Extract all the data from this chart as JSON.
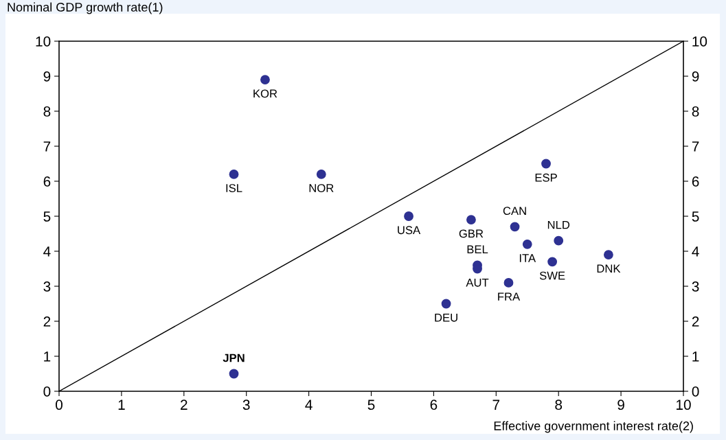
{
  "chart_data": {
    "type": "scatter",
    "xlabel": "Effective government interest rate(2)",
    "ylabel": "Nominal GDP growth rate(1)",
    "xlim": [
      0,
      10
    ],
    "xticks": [
      0,
      1,
      2,
      3,
      4,
      5,
      6,
      7,
      8,
      9,
      10
    ],
    "ylim": [
      0,
      10
    ],
    "yticks": [
      0,
      1,
      2,
      3,
      4,
      5,
      6,
      7,
      8,
      9,
      10
    ],
    "y2lim": [
      0,
      10
    ],
    "y2ticks": [
      0,
      1,
      2,
      3,
      4,
      5,
      6,
      7,
      8,
      9,
      10
    ],
    "grid": false,
    "legend": false,
    "series": [
      {
        "marker": "circle",
        "color": "#2e3192",
        "x": [
          3.3,
          2.8,
          4.2,
          7.8,
          5.6,
          6.6,
          7.3,
          8.0,
          7.5,
          8.8,
          6.7,
          6.7,
          7.9,
          7.2,
          6.2,
          2.8
        ],
        "values": [
          8.9,
          6.2,
          6.2,
          6.5,
          5.0,
          4.9,
          4.7,
          4.3,
          4.2,
          3.9,
          3.6,
          3.5,
          3.7,
          3.1,
          2.5,
          0.5
        ]
      },
      {
        "type": "line",
        "color": "#000000",
        "x": [
          0,
          10
        ],
        "values": [
          0,
          10
        ]
      }
    ],
    "annotations": [
      {
        "text": "KOR",
        "x": 3.3,
        "y": 8.9
      },
      {
        "text": "ISL",
        "x": 2.8,
        "y": 6.2
      },
      {
        "text": "NOR",
        "x": 4.2,
        "y": 6.2
      },
      {
        "text": "ESP",
        "x": 7.8,
        "y": 6.5
      },
      {
        "text": "USA",
        "x": 5.6,
        "y": 5.0
      },
      {
        "text": "GBR",
        "x": 6.6,
        "y": 4.9
      },
      {
        "text": "CAN",
        "x": 7.3,
        "y": 4.7
      },
      {
        "text": "NLD",
        "x": 8.0,
        "y": 4.3
      },
      {
        "text": "ITA",
        "x": 7.5,
        "y": 4.2
      },
      {
        "text": "DNK",
        "x": 8.8,
        "y": 3.9
      },
      {
        "text": "BEL",
        "x": 6.7,
        "y": 3.6
      },
      {
        "text": "AUT",
        "x": 6.7,
        "y": 3.5
      },
      {
        "text": "SWE",
        "x": 7.9,
        "y": 3.7
      },
      {
        "text": "FRA",
        "x": 7.2,
        "y": 3.1
      },
      {
        "text": "DEU",
        "x": 6.2,
        "y": 2.5
      },
      {
        "text": "JPN",
        "x": 2.8,
        "y": 0.5
      }
    ]
  }
}
